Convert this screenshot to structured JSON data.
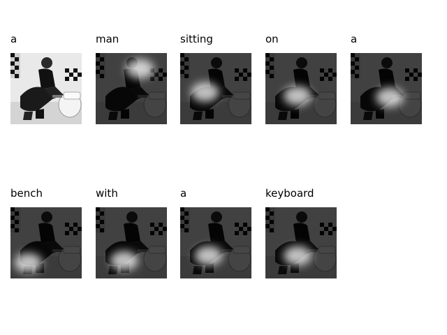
{
  "panels": [
    {
      "word": "a",
      "attention": null
    },
    {
      "word": "man",
      "attention": [
        0.62,
        0.22
      ]
    },
    {
      "word": "sitting",
      "attention": [
        0.35,
        0.55
      ]
    },
    {
      "word": "on",
      "attention": [
        0.45,
        0.6
      ]
    },
    {
      "word": "a",
      "attention": [
        0.55,
        0.62
      ]
    },
    {
      "word": "bench",
      "attention": [
        0.25,
        0.78
      ]
    },
    {
      "word": "with",
      "attention": [
        0.4,
        0.75
      ]
    },
    {
      "word": "a",
      "attention": [
        0.4,
        0.68
      ]
    },
    {
      "word": "keyboard",
      "attention": [
        0.45,
        0.68
      ]
    }
  ]
}
